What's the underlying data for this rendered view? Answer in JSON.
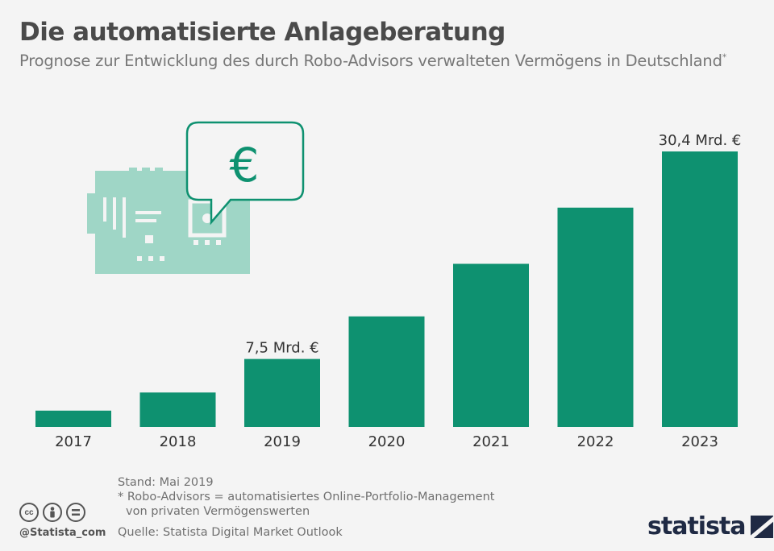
{
  "header": {
    "title": "Die automatisierte Anlageberatung",
    "subtitle": "Prognose zur Entwicklung des durch Robo-Advisors verwalteten Vermögens in Deutschland",
    "subtitle_mark": "*"
  },
  "illustration": {
    "icon": "robot-chip-icon",
    "bubble_symbol": "€"
  },
  "chart_data": {
    "type": "bar",
    "categories": [
      "2017",
      "2018",
      "2019",
      "2020",
      "2021",
      "2022",
      "2023"
    ],
    "values": [
      1.8,
      3.8,
      7.5,
      12.2,
      18.0,
      24.2,
      30.4
    ],
    "data_labels": [
      "",
      "",
      "7,5 Mrd. €",
      "",
      "",
      "",
      "30,4 Mrd. €"
    ],
    "ylim": [
      0,
      30.4
    ],
    "title": "",
    "xlabel": "",
    "ylabel": "",
    "colors": {
      "bar": "#0e9170"
    },
    "grid": false
  },
  "footer": {
    "stand": "Stand: Mai 2019",
    "note_line1": "* Robo-Advisors = automatisiertes Online-Portfolio-Management",
    "note_line2": "von privaten Vermögenswerten",
    "source": "Quelle: Statista Digital Market Outlook",
    "handle": "@Statista_com",
    "brand": "statista",
    "cc_icons": [
      "cc",
      "by",
      "nd"
    ]
  }
}
